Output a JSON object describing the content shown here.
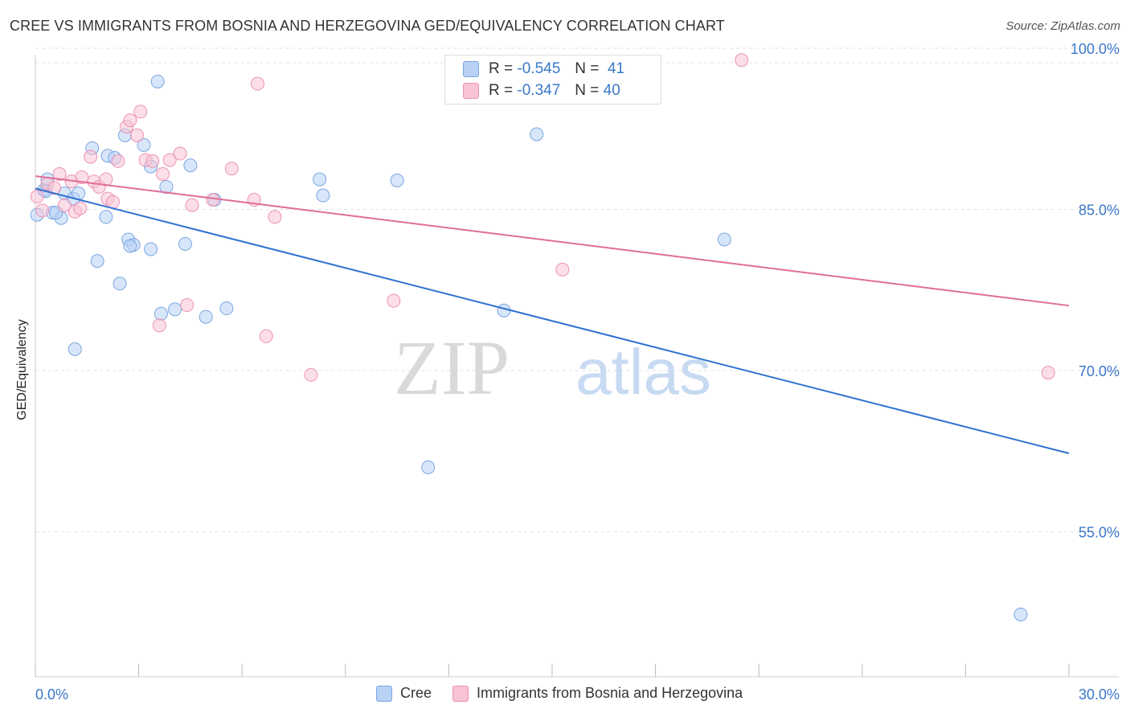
{
  "title": "CREE VS IMMIGRANTS FROM BOSNIA AND HERZEGOVINA GED/EQUIVALENCY CORRELATION CHART",
  "source": "Source: ZipAtlas.com",
  "watermark": {
    "part1": "ZIP",
    "part2": "atlas"
  },
  "legend": {
    "rows": [
      {
        "r_label": "R =",
        "r_value": "-0.545",
        "n_label": "N =",
        "n_value": "41"
      },
      {
        "r_label": "R =",
        "r_value": "-0.347",
        "n_label": "N =",
        "n_value": "40"
      }
    ]
  },
  "colors": {
    "cree_fill": "#b8d1f5",
    "cree_stroke": "#7aa6e0",
    "cree_line": "#2f72cf",
    "bosnia_fill": "#f8c3d6",
    "bosnia_stroke": "#ec93b4",
    "bosnia_line": "#e06d98",
    "tick_label": "#3a78c9",
    "grid": "#e2e2e2"
  },
  "chart_data": {
    "type": "scatter",
    "title": "CREE VS IMMIGRANTS FROM BOSNIA AND HERZEGOVINA GED/EQUIVALENCY CORRELATION CHART",
    "xlabel": "",
    "ylabel": "GED/Equivalency",
    "xlim": [
      0,
      30
    ],
    "ylim": [
      41.5,
      101.5
    ],
    "x_tick_labels": [
      "0.0%",
      "30.0%"
    ],
    "y_ticks": [
      100,
      85,
      70,
      55
    ],
    "y_tick_labels": [
      "100.0%",
      "85.0%",
      "70.0%",
      "55.0%"
    ],
    "grid": true,
    "legend_position": "top-center",
    "series": [
      {
        "name": "Cree",
        "points": [
          [
            0.05,
            84.5
          ],
          [
            0.25,
            86.8
          ],
          [
            0.35,
            87.8
          ],
          [
            0.5,
            84.7
          ],
          [
            0.75,
            84.2
          ],
          [
            0.85,
            86.5
          ],
          [
            1.1,
            86.0
          ],
          [
            1.25,
            86.5
          ],
          [
            1.65,
            90.7
          ],
          [
            2.1,
            90.0
          ],
          [
            2.3,
            89.8
          ],
          [
            2.6,
            91.9
          ],
          [
            3.15,
            91.0
          ],
          [
            3.35,
            89.0
          ],
          [
            2.7,
            82.2
          ],
          [
            2.85,
            81.7
          ],
          [
            2.75,
            81.6
          ],
          [
            3.35,
            81.3
          ],
          [
            3.55,
            96.9
          ],
          [
            3.8,
            87.1
          ],
          [
            4.5,
            89.1
          ],
          [
            2.05,
            84.3
          ],
          [
            4.05,
            75.7
          ],
          [
            3.65,
            75.3
          ],
          [
            4.35,
            81.8
          ],
          [
            4.95,
            75.0
          ],
          [
            5.2,
            85.9
          ],
          [
            5.55,
            75.8
          ],
          [
            1.8,
            80.2
          ],
          [
            2.45,
            78.1
          ],
          [
            1.15,
            72.0
          ],
          [
            0.6,
            84.7
          ],
          [
            8.25,
            87.8
          ],
          [
            8.35,
            86.3
          ],
          [
            10.5,
            87.7
          ],
          [
            11.4,
            61.0
          ],
          [
            13.6,
            75.6
          ],
          [
            14.55,
            92.0
          ],
          [
            20.0,
            82.2
          ],
          [
            28.6,
            47.3
          ],
          [
            0.3,
            86.7
          ]
        ],
        "trend": {
          "x": [
            0,
            30
          ],
          "y": [
            86.95,
            62.3
          ]
        }
      },
      {
        "name": "Immigrants from Bosnia and Herzegovina",
        "points": [
          [
            0.05,
            86.2
          ],
          [
            0.2,
            84.9
          ],
          [
            0.35,
            87.4
          ],
          [
            0.55,
            87.0
          ],
          [
            0.7,
            88.3
          ],
          [
            0.85,
            85.4
          ],
          [
            1.05,
            87.6
          ],
          [
            1.15,
            84.8
          ],
          [
            1.35,
            88.0
          ],
          [
            1.6,
            89.9
          ],
          [
            1.7,
            87.6
          ],
          [
            1.85,
            87.1
          ],
          [
            2.05,
            87.8
          ],
          [
            2.1,
            86.0
          ],
          [
            2.25,
            85.7
          ],
          [
            2.4,
            89.5
          ],
          [
            2.65,
            92.7
          ],
          [
            2.75,
            93.3
          ],
          [
            3.05,
            94.1
          ],
          [
            2.95,
            91.9
          ],
          [
            3.2,
            89.6
          ],
          [
            3.4,
            89.5
          ],
          [
            3.7,
            88.3
          ],
          [
            3.9,
            89.6
          ],
          [
            4.2,
            90.2
          ],
          [
            4.55,
            85.4
          ],
          [
            5.15,
            85.9
          ],
          [
            5.7,
            88.8
          ],
          [
            6.35,
            85.9
          ],
          [
            6.45,
            96.7
          ],
          [
            6.95,
            84.3
          ],
          [
            4.4,
            76.1
          ],
          [
            3.6,
            74.2
          ],
          [
            6.7,
            73.2
          ],
          [
            8.0,
            69.6
          ],
          [
            10.4,
            76.5
          ],
          [
            15.3,
            79.4
          ],
          [
            20.5,
            98.9
          ],
          [
            29.4,
            69.8
          ],
          [
            1.3,
            85.1
          ]
        ],
        "trend": {
          "x": [
            0,
            30
          ],
          "y": [
            88.1,
            76.05
          ]
        }
      }
    ]
  },
  "bottom_legend": {
    "items": [
      {
        "label": "Cree"
      },
      {
        "label": "Immigrants from Bosnia and Herzegovina"
      }
    ]
  }
}
